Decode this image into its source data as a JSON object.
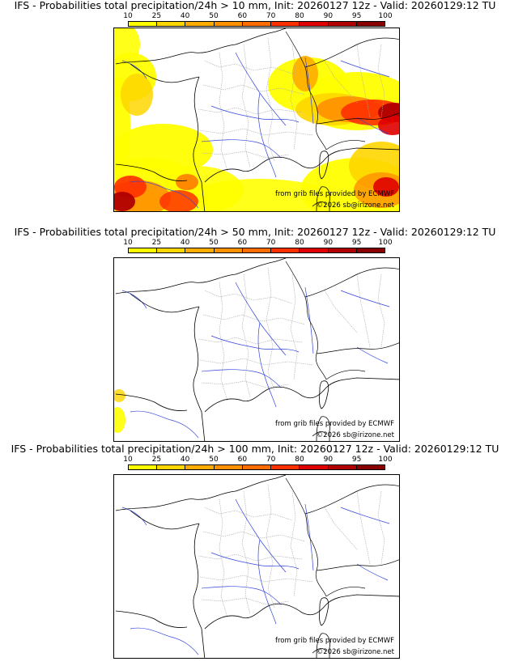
{
  "colorbar": {
    "ticks": [
      "10",
      "25",
      "40",
      "50",
      "60",
      "70",
      "80",
      "90",
      "95",
      "100"
    ],
    "colors": [
      "#ffff00",
      "#ffd600",
      "#ffac00",
      "#ff9000",
      "#ff6c00",
      "#ff3000",
      "#e00000",
      "#b00000",
      "#880000"
    ]
  },
  "colors": {
    "land_border": "#000000",
    "region_border": "#aaaaaa",
    "river": "#3344dd"
  },
  "panels": [
    {
      "title": "IFS - Probabilities total precipitation/24h > 10 mm, Init: 20260127 12z - Valid: 20260129:12 TU",
      "credit_source": "from grib files provided by ECMWF",
      "credit_copyright": "©2026 sb@irizone.net",
      "level": "high"
    },
    {
      "title": "IFS - Probabilities total precipitation/24h > 50 mm, Init: 20260127 12z - Valid: 20260129:12 TU",
      "credit_source": "from grib files provided by ECMWF",
      "credit_copyright": "©2026 sb@irizone.net",
      "level": "low"
    },
    {
      "title": "IFS - Probabilities total precipitation/24h > 100 mm, Init: 20260127 12z - Valid: 20260129:12 TU",
      "credit_source": "from grib files provided by ECMWF",
      "credit_copyright": "©2026 sb@irizone.net",
      "level": "none"
    }
  ]
}
